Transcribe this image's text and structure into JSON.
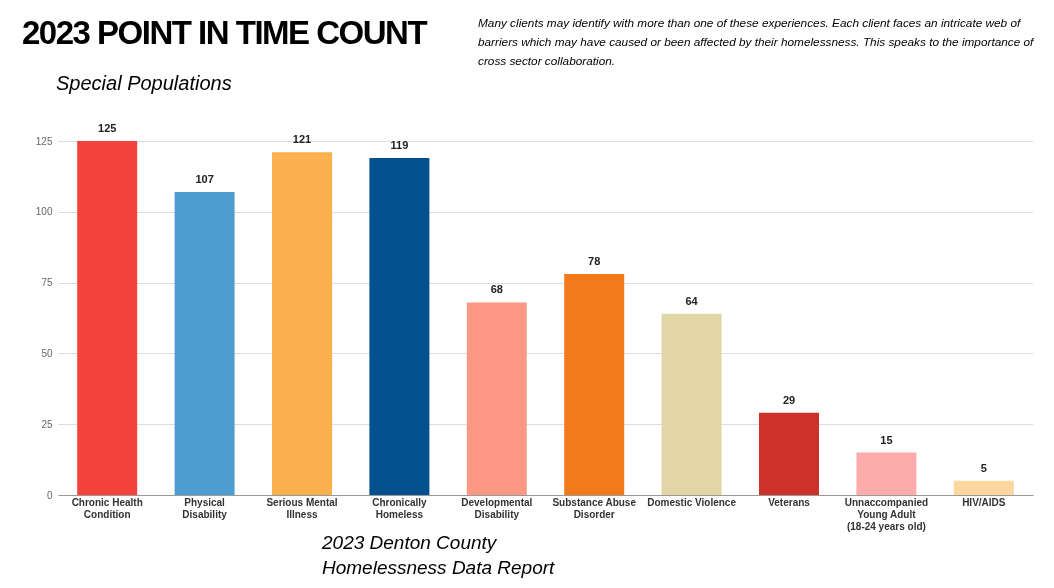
{
  "chart_data": {
    "type": "bar",
    "title": "2023 POINT IN TIME COUNT",
    "subtitle": "Special Populations",
    "annotations": [
      "Many clients may identify with more than one of these experiences. Each client faces an intricate web of barriers which may have caused or been affected by their homelessness. This speaks to the importance of cross sector collaboration.",
      "2023 Denton County Homelessness Data Report"
    ],
    "categories": [
      "Chronic Health Condition",
      "Physical Disability",
      "Serious Mental Illness",
      "Chronically Homeless",
      "Developmental Disability",
      "Substance Abuse Disorder",
      "Domestic Violence",
      "Veterans",
      "Unnaccompanied Young Adult (18-24 years old)",
      "HIV/AIDS"
    ],
    "values": [
      125,
      107,
      121,
      119,
      68,
      78,
      64,
      29,
      15,
      5
    ],
    "colors": [
      "#f4433c",
      "#4f9dd0",
      "#fbb04e",
      "#03508f",
      "#fc9883",
      "#f37a1b",
      "#e2d6a7",
      "#cc3229",
      "#fdabab",
      "#fdd6a0"
    ],
    "ylim": [
      0,
      125
    ],
    "yticks": [
      0,
      25,
      50,
      75,
      100,
      125
    ],
    "grid": "y",
    "data_labels": true
  }
}
